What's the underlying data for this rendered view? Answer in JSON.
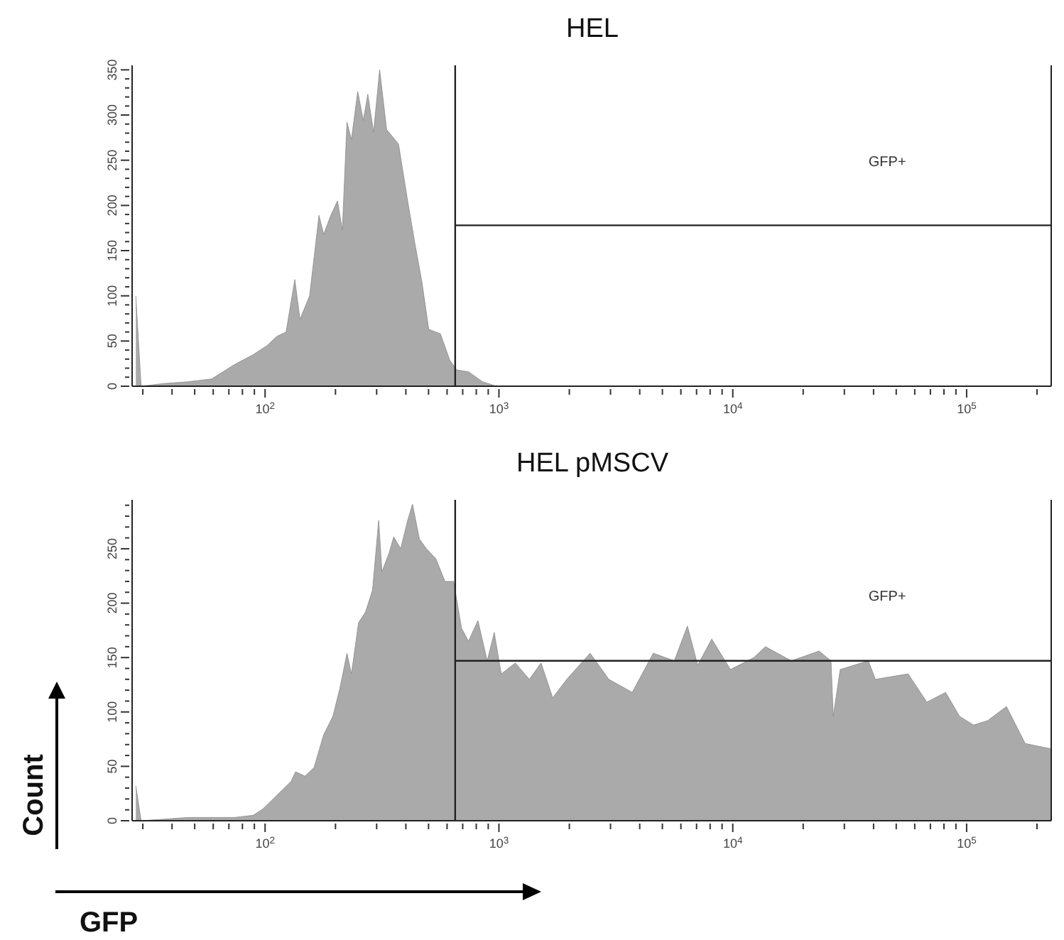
{
  "chart_data": [
    {
      "type": "area",
      "title": "HEL",
      "log": "x",
      "color": "#aaaaaa",
      "x": [
        28,
        29.5,
        37,
        47,
        59,
        74,
        89,
        102,
        112,
        123,
        134,
        141,
        155,
        170,
        178,
        191,
        204,
        214,
        224,
        234,
        249,
        263,
        275,
        291,
        309,
        331,
        372,
        407,
        437,
        468,
        501,
        562,
        616,
        660,
        741,
        851,
        977,
        230000
      ],
      "values": [
        100,
        0,
        3,
        5,
        8,
        24,
        35,
        45,
        55,
        60,
        118,
        74,
        100,
        189,
        168,
        189,
        205,
        173,
        292,
        273,
        326,
        294,
        323,
        281,
        350,
        284,
        268,
        205,
        158,
        116,
        63,
        58,
        29,
        18,
        16,
        5,
        0,
        0
      ],
      "xlim": [
        27,
        230000
      ],
      "ylim": [
        0,
        355
      ],
      "xticks": [
        {
          "value": 30,
          "label": null
        },
        {
          "value": 40,
          "label": null
        },
        {
          "value": 50,
          "label": null
        },
        {
          "value": 60,
          "label": null
        },
        {
          "value": 70,
          "label": null
        },
        {
          "value": 80,
          "label": null
        },
        {
          "value": 90,
          "label": null
        },
        {
          "value": 100,
          "label": "10$^{2}$"
        },
        {
          "value": 200,
          "label": null
        },
        {
          "value": 300,
          "label": null
        },
        {
          "value": 400,
          "label": null
        },
        {
          "value": 500,
          "label": null
        },
        {
          "value": 600,
          "label": null
        },
        {
          "value": 700,
          "label": null
        },
        {
          "value": 800,
          "label": null
        },
        {
          "value": 900,
          "label": null
        },
        {
          "value": 1000,
          "label": "10$^{3}$"
        },
        {
          "value": 2000,
          "label": null
        },
        {
          "value": 3000,
          "label": null
        },
        {
          "value": 4000,
          "label": null
        },
        {
          "value": 5000,
          "label": null
        },
        {
          "value": 6000,
          "label": null
        },
        {
          "value": 7000,
          "label": null
        },
        {
          "value": 8000,
          "label": null
        },
        {
          "value": 9000,
          "label": null
        },
        {
          "value": 10000,
          "label": "10$^{4}$"
        },
        {
          "value": 20000,
          "label": null
        },
        {
          "value": 30000,
          "label": null
        },
        {
          "value": 40000,
          "label": null
        },
        {
          "value": 50000,
          "label": null
        },
        {
          "value": 60000,
          "label": null
        },
        {
          "value": 70000,
          "label": null
        },
        {
          "value": 80000,
          "label": null
        },
        {
          "value": 90000,
          "label": null
        },
        {
          "value": 100000,
          "label": "10$^{5}$"
        },
        {
          "value": 200000,
          "label": null
        }
      ],
      "yticks": [
        0,
        {
          "value": 10,
          "label": null
        },
        {
          "value": 20,
          "label": null
        },
        {
          "value": 30,
          "label": null
        },
        {
          "value": 40,
          "label": null
        },
        50,
        {
          "value": 60,
          "label": null
        },
        {
          "value": 70,
          "label": null
        },
        {
          "value": 80,
          "label": null
        },
        {
          "value": 90,
          "label": null
        },
        100,
        {
          "value": 110,
          "label": null
        },
        {
          "value": 120,
          "label": null
        },
        {
          "value": 130,
          "label": null
        },
        {
          "value": 140,
          "label": null
        },
        150,
        {
          "value": 160,
          "label": null
        },
        {
          "value": 170,
          "label": null
        },
        {
          "value": 180,
          "label": null
        },
        {
          "value": 190,
          "label": null
        },
        200,
        {
          "value": 210,
          "label": null
        },
        {
          "value": 220,
          "label": null
        },
        {
          "value": 230,
          "label": null
        },
        {
          "value": 240,
          "label": null
        },
        250,
        {
          "value": 260,
          "label": null
        },
        {
          "value": 270,
          "label": null
        },
        {
          "value": 280,
          "label": null
        },
        {
          "value": 290,
          "label": null
        },
        300,
        {
          "value": 310,
          "label": null
        },
        {
          "value": 320,
          "label": null
        },
        {
          "value": 330,
          "label": null
        },
        {
          "value": 340,
          "label": null
        },
        350
      ],
      "ref_lines": [
        {
          "axis": "x",
          "value": 650
        },
        {
          "axis": "y",
          "value": 178
        }
      ],
      "annotations": [
        "GFP+"
      ]
    },
    {
      "type": "area",
      "title": "HEL pMSCV",
      "xlabel": "GFP",
      "ylabel": "Count",
      "log": "x",
      "color": "#aaaaaa",
      "x": [
        28,
        29.5,
        47,
        74,
        89,
        98,
        107,
        129,
        135,
        148,
        162,
        178,
        195,
        209,
        224,
        234,
        251,
        269,
        288,
        306,
        316,
        339,
        355,
        380,
        407,
        427,
        457,
        490,
        537,
        588,
        640,
        692,
        741,
        813,
        891,
        955,
        1023,
        1175,
        1349,
        1514,
        1698,
        1950,
        2455,
        2951,
        3715,
        4571,
        5623,
        6397,
        7080,
        8128,
        9772,
        12300,
        13800,
        17800,
        23400,
        26300,
        26900,
        28800,
        38000,
        40700,
        56200,
        67600,
        81300,
        93300,
        107000,
        123000,
        148000,
        178000,
        230000
      ],
      "values": [
        32,
        0,
        3,
        3,
        5,
        11,
        19,
        36,
        45,
        41,
        49,
        79,
        96,
        122,
        154,
        135,
        182,
        192,
        212,
        276,
        229,
        246,
        261,
        250,
        276,
        291,
        259,
        250,
        241,
        220,
        220,
        177,
        165,
        184,
        147,
        173,
        135,
        145,
        130,
        145,
        113,
        130,
        154,
        130,
        118,
        154,
        147,
        179,
        143,
        167,
        139,
        150,
        160,
        147,
        156,
        147,
        96,
        139,
        147,
        130,
        135,
        109,
        118,
        96,
        88,
        92,
        105,
        71,
        66
      ],
      "xlim": [
        27,
        230000
      ],
      "ylim": [
        0,
        295
      ],
      "xticks": [
        {
          "value": 30,
          "label": null
        },
        {
          "value": 40,
          "label": null
        },
        {
          "value": 50,
          "label": null
        },
        {
          "value": 60,
          "label": null
        },
        {
          "value": 70,
          "label": null
        },
        {
          "value": 80,
          "label": null
        },
        {
          "value": 90,
          "label": null
        },
        {
          "value": 100,
          "label": "10$^{2}$"
        },
        {
          "value": 200,
          "label": null
        },
        {
          "value": 300,
          "label": null
        },
        {
          "value": 400,
          "label": null
        },
        {
          "value": 500,
          "label": null
        },
        {
          "value": 600,
          "label": null
        },
        {
          "value": 700,
          "label": null
        },
        {
          "value": 800,
          "label": null
        },
        {
          "value": 900,
          "label": null
        },
        {
          "value": 1000,
          "label": "10$^{3}$"
        },
        {
          "value": 2000,
          "label": null
        },
        {
          "value": 3000,
          "label": null
        },
        {
          "value": 4000,
          "label": null
        },
        {
          "value": 5000,
          "label": null
        },
        {
          "value": 6000,
          "label": null
        },
        {
          "value": 7000,
          "label": null
        },
        {
          "value": 8000,
          "label": null
        },
        {
          "value": 9000,
          "label": null
        },
        {
          "value": 10000,
          "label": "10$^{4}$"
        },
        {
          "value": 20000,
          "label": null
        },
        {
          "value": 30000,
          "label": null
        },
        {
          "value": 40000,
          "label": null
        },
        {
          "value": 50000,
          "label": null
        },
        {
          "value": 60000,
          "label": null
        },
        {
          "value": 70000,
          "label": null
        },
        {
          "value": 80000,
          "label": null
        },
        {
          "value": 90000,
          "label": null
        },
        {
          "value": 100000,
          "label": "10$^{5}$"
        },
        {
          "value": 200000,
          "label": null
        }
      ],
      "yticks": [
        0,
        {
          "value": 10,
          "label": null
        },
        {
          "value": 20,
          "label": null
        },
        {
          "value": 30,
          "label": null
        },
        {
          "value": 40,
          "label": null
        },
        50,
        {
          "value": 60,
          "label": null
        },
        {
          "value": 70,
          "label": null
        },
        {
          "value": 80,
          "label": null
        },
        {
          "value": 90,
          "label": null
        },
        100,
        {
          "value": 110,
          "label": null
        },
        {
          "value": 120,
          "label": null
        },
        {
          "value": 130,
          "label": null
        },
        {
          "value": 140,
          "label": null
        },
        150,
        {
          "value": 160,
          "label": null
        },
        {
          "value": 170,
          "label": null
        },
        {
          "value": 180,
          "label": null
        },
        {
          "value": 190,
          "label": null
        },
        200,
        {
          "value": 210,
          "label": null
        },
        {
          "value": 220,
          "label": null
        },
        {
          "value": 230,
          "label": null
        },
        {
          "value": 240,
          "label": null
        },
        250,
        {
          "value": 260,
          "label": null
        },
        {
          "value": 270,
          "label": null
        },
        {
          "value": 280,
          "label": null
        },
        {
          "value": 290,
          "label": null
        }
      ],
      "ref_lines": [
        {
          "axis": "x",
          "value": 650
        },
        {
          "axis": "y",
          "value": 147
        }
      ],
      "annotations": [
        "GFP+"
      ]
    }
  ]
}
